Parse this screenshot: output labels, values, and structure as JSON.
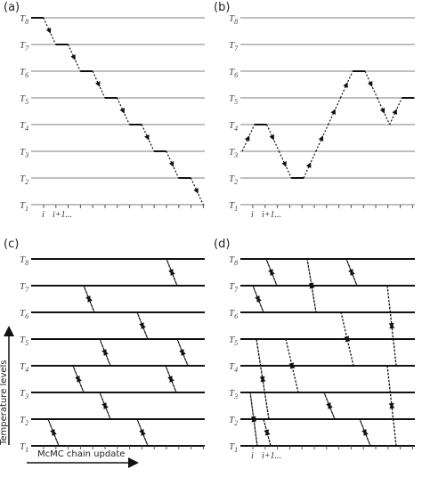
{
  "panels": [
    {
      "label": "(a)"
    },
    {
      "label": "(b)"
    },
    {
      "label": "(c)"
    },
    {
      "label": "(d)"
    }
  ],
  "level_symbol": "T",
  "levels": [
    "8",
    "7",
    "6",
    "5",
    "4",
    "3",
    "2",
    "1"
  ],
  "x_labels": [
    "i",
    "i+1..."
  ],
  "y_axis_label": "Temperature levels",
  "x_axis_label": "McMC chain update"
}
